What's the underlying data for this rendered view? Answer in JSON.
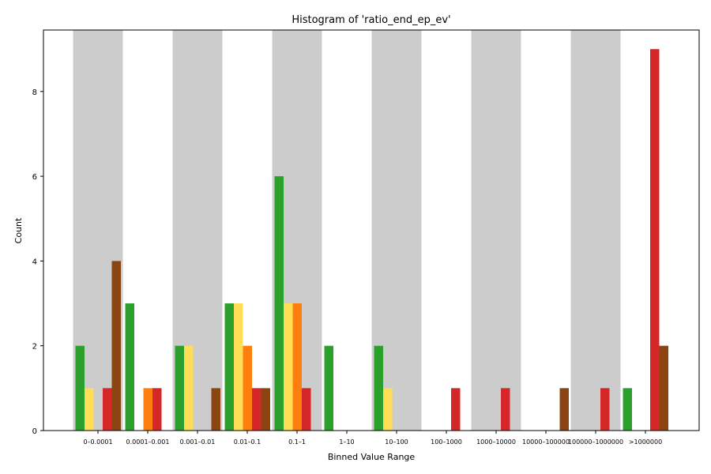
{
  "chart_data": {
    "type": "bar",
    "title": "Histogram of 'ratio_end_ep_ev'",
    "xlabel": "Binned Value Range",
    "ylabel": "Count",
    "ylim": [
      0,
      9.45
    ],
    "yticks": [
      0,
      2,
      4,
      6,
      8
    ],
    "categories": [
      "0–0.0001",
      "0.0001–0.001",
      "0.001–0.01",
      "0.01–0.1",
      "0.1–1",
      "1–10",
      "10–100",
      "100–1000",
      "1000–10000",
      "10000–100000",
      "100000–1000000",
      ">1000000"
    ],
    "alternating_band_color": "#cccccc",
    "grid": false,
    "series": [
      {
        "color": "#2ca02c",
        "values": [
          2,
          3,
          2,
          3,
          6,
          2,
          2,
          0,
          0,
          0,
          0,
          1
        ]
      },
      {
        "color": "#ffdd57",
        "values": [
          1,
          0,
          2,
          3,
          3,
          0,
          1,
          0,
          0,
          0,
          0,
          0
        ]
      },
      {
        "color": "#ff7f0e",
        "values": [
          0,
          1,
          0,
          2,
          3,
          0,
          0,
          0,
          0,
          0,
          0,
          0
        ]
      },
      {
        "color": "#d62728",
        "values": [
          1,
          1,
          0,
          1,
          1,
          0,
          0,
          1,
          1,
          0,
          1,
          9
        ]
      },
      {
        "color": "#8b4513",
        "values": [
          4,
          0,
          1,
          1,
          0,
          0,
          0,
          0,
          0,
          1,
          0,
          2
        ]
      }
    ]
  }
}
